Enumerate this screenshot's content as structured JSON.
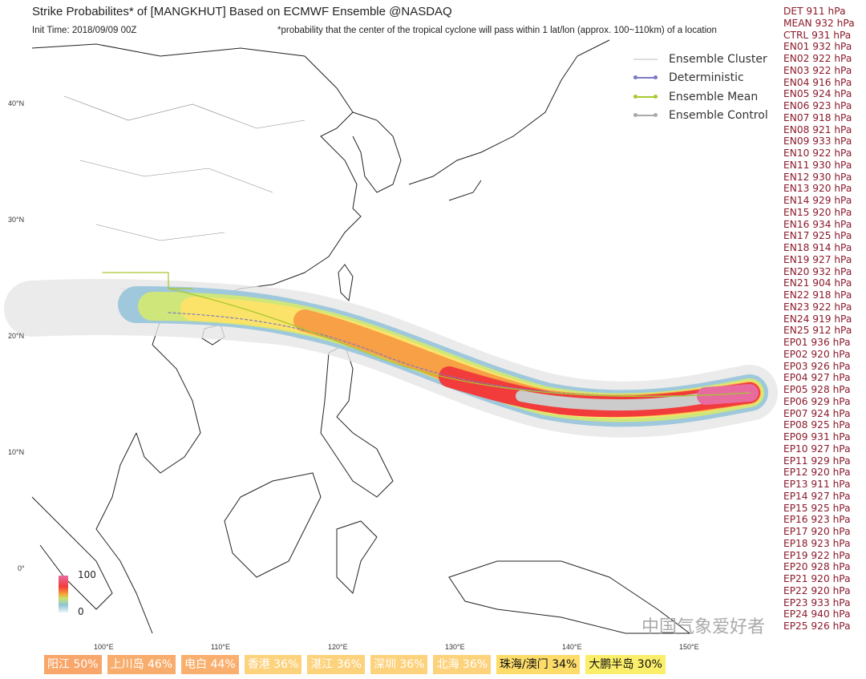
{
  "header": {
    "title": "Strike Probabilites* of [MANGKHUT] Based on ECMWF Ensemble  @NASDAQ",
    "init_time": "Init Time: 2018/09/09 00Z",
    "note": "*probability that the center of the tropical cyclone will pass within 1 lat/lon (approx. 100~110km) of a location"
  },
  "legend": {
    "items": [
      {
        "label": "Ensemble Cluster",
        "color": "#d0d0d0"
      },
      {
        "label": "Deterministic",
        "color": "#7b7bc4"
      },
      {
        "label": "Ensemble Mean",
        "color": "#a8c830"
      },
      {
        "label": "Ensemble Control",
        "color": "#a0a0a0"
      }
    ]
  },
  "axes": {
    "lon_ticks": [
      "100°E",
      "110°E",
      "120°E",
      "130°E",
      "140°E",
      "150°E"
    ],
    "lat_ticks": [
      "40°N",
      "30°N",
      "20°N",
      "10°N",
      "0°"
    ]
  },
  "colorbar": {
    "max": "100",
    "min": "0"
  },
  "pressures": [
    "DET 911 hPa",
    "MEAN 932 hPa",
    "CTRL 931 hPa",
    "EN01 932 hPa",
    "EN02 922 hPa",
    "EN03 922 hPa",
    "EN04 916 hPa",
    "EN05 924 hPa",
    "EN06 923 hPa",
    "EN07 918 hPa",
    "EN08 921 hPa",
    "EN09 933 hPa",
    "EN10 922 hPa",
    "EN11 930 hPa",
    "EN12 930 hPa",
    "EN13 920 hPa",
    "EN14 929 hPa",
    "EN15 920 hPa",
    "EN16 934 hPa",
    "EN17 925 hPa",
    "EN18 914 hPa",
    "EN19 927 hPa",
    "EN20 932 hPa",
    "EN21 904 hPa",
    "EN22 918 hPa",
    "EN23 922 hPa",
    "EN24 919 hPa",
    "EN25 912 hPa",
    "EP01 936 hPa",
    "EP02 920 hPa",
    "EP03 926 hPa",
    "EP04 927 hPa",
    "EP05 928 hPa",
    "EP06 929 hPa",
    "EP07 924 hPa",
    "EP08 925 hPa",
    "EP09 931 hPa",
    "EP10 927 hPa",
    "EP11 929 hPa",
    "EP12 920 hPa",
    "EP13 911 hPa",
    "EP14 927 hPa",
    "EP15 925 hPa",
    "EP16 923 hPa",
    "EP17 920 hPa",
    "EP18 923 hPa",
    "EP19 922 hPa",
    "EP20 928 hPa",
    "EP21 920 hPa",
    "EP22 920 hPa",
    "EP23 933 hPa",
    "EP24 940 hPa",
    "EP25 926 hPa"
  ],
  "places": [
    {
      "label": "阳江 50%",
      "color": "#f8a66a",
      "text": "#ffffff"
    },
    {
      "label": "上川岛 46%",
      "color": "#f8ad6c",
      "text": "#ffffff"
    },
    {
      "label": "电白 44%",
      "color": "#f9b06e",
      "text": "#ffffff"
    },
    {
      "label": "香港 36%",
      "color": "#fdd27c",
      "text": "#ffffff"
    },
    {
      "label": "湛江 36%",
      "color": "#fdd27c",
      "text": "#ffffff"
    },
    {
      "label": "深圳 36%",
      "color": "#fdd27c",
      "text": "#ffffff"
    },
    {
      "label": "北海 36%",
      "color": "#fdd27c",
      "text": "#ffffff"
    },
    {
      "label": "珠海/澳门 34%",
      "color": "#fddc6a",
      "text": "#111111"
    },
    {
      "label": "大鹏半岛 30%",
      "color": "#fbee6a",
      "text": "#111111"
    }
  ],
  "watermark": "中国气象爱好者"
}
